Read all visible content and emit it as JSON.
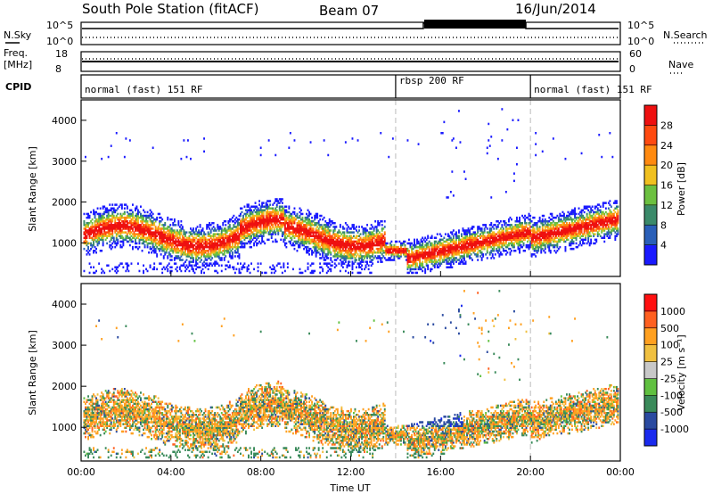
{
  "header": {
    "station": "South Pole Station (fitACF)",
    "beam": "Beam 07",
    "date": "16/Jun/2014"
  },
  "top_panels": {
    "nsky_label": "N.Sky",
    "nsky_ticks": [
      "10^5",
      "10^0"
    ],
    "nsearch_label": "N.Search",
    "nsearch_ticks": [
      "10^5",
      "10^0"
    ],
    "freq_label": "Freq.",
    "freq_unit": "[MHz]",
    "freq_ticks": [
      "18",
      "8"
    ],
    "nave_label": "Nave",
    "nave_ticks": [
      "60",
      "0"
    ],
    "cpid_label": "CPID",
    "cpid_segments": [
      {
        "label": "normal (fast) 151 RF",
        "start": 0,
        "end": 14
      },
      {
        "label": "rbsp 200 RF",
        "start": 14,
        "end": 20
      },
      {
        "label": "normal (fast) 151 RF",
        "start": 20,
        "end": 24
      }
    ]
  },
  "colors": {
    "power": [
      "#1a1aff",
      "#2a5fb8",
      "#3b8a6a",
      "#6cc040",
      "#f0c020",
      "#ff8a10",
      "#ff4a10",
      "#ee1010"
    ],
    "velocity": [
      "#ff1010",
      "#ff6020",
      "#ffa020",
      "#f0c040",
      "#c8c8c8",
      "#60c040",
      "#3a8a5a",
      "#2a4aa0",
      "#1a2aee"
    ]
  },
  "chart_data": [
    {
      "type": "heatmap",
      "name": "power",
      "ylabel": "Slant Range [km]",
      "x": [
        0,
        24
      ],
      "ylim": [
        180,
        4500
      ],
      "x_ticks": [
        "00:00",
        "04:00",
        "08:00",
        "12:00",
        "16:00",
        "20:00",
        "00:00"
      ],
      "y_ticks": [
        1000,
        2000,
        3000,
        4000
      ],
      "colorbar_label": "Power [dB]",
      "colorbar_ticks": [
        "28",
        "24",
        "20",
        "16",
        "12",
        "8",
        "4"
      ],
      "values_description": ""
    },
    {
      "type": "heatmap",
      "name": "velocity",
      "ylabel": "Slant Range [km]",
      "xlabel": "Time UT",
      "x": [
        0,
        24
      ],
      "ylim": [
        180,
        4500
      ],
      "x_ticks": [
        "00:00",
        "04:00",
        "08:00",
        "12:00",
        "16:00",
        "20:00",
        "00:00"
      ],
      "y_ticks": [
        1000,
        2000,
        3000,
        4000
      ],
      "colorbar_label": "Velocity [m s⁻¹]",
      "colorbar_ticks": [
        "1000",
        "500",
        "100",
        "25",
        "-25",
        "-100",
        "-500",
        "-1000"
      ]
    }
  ]
}
